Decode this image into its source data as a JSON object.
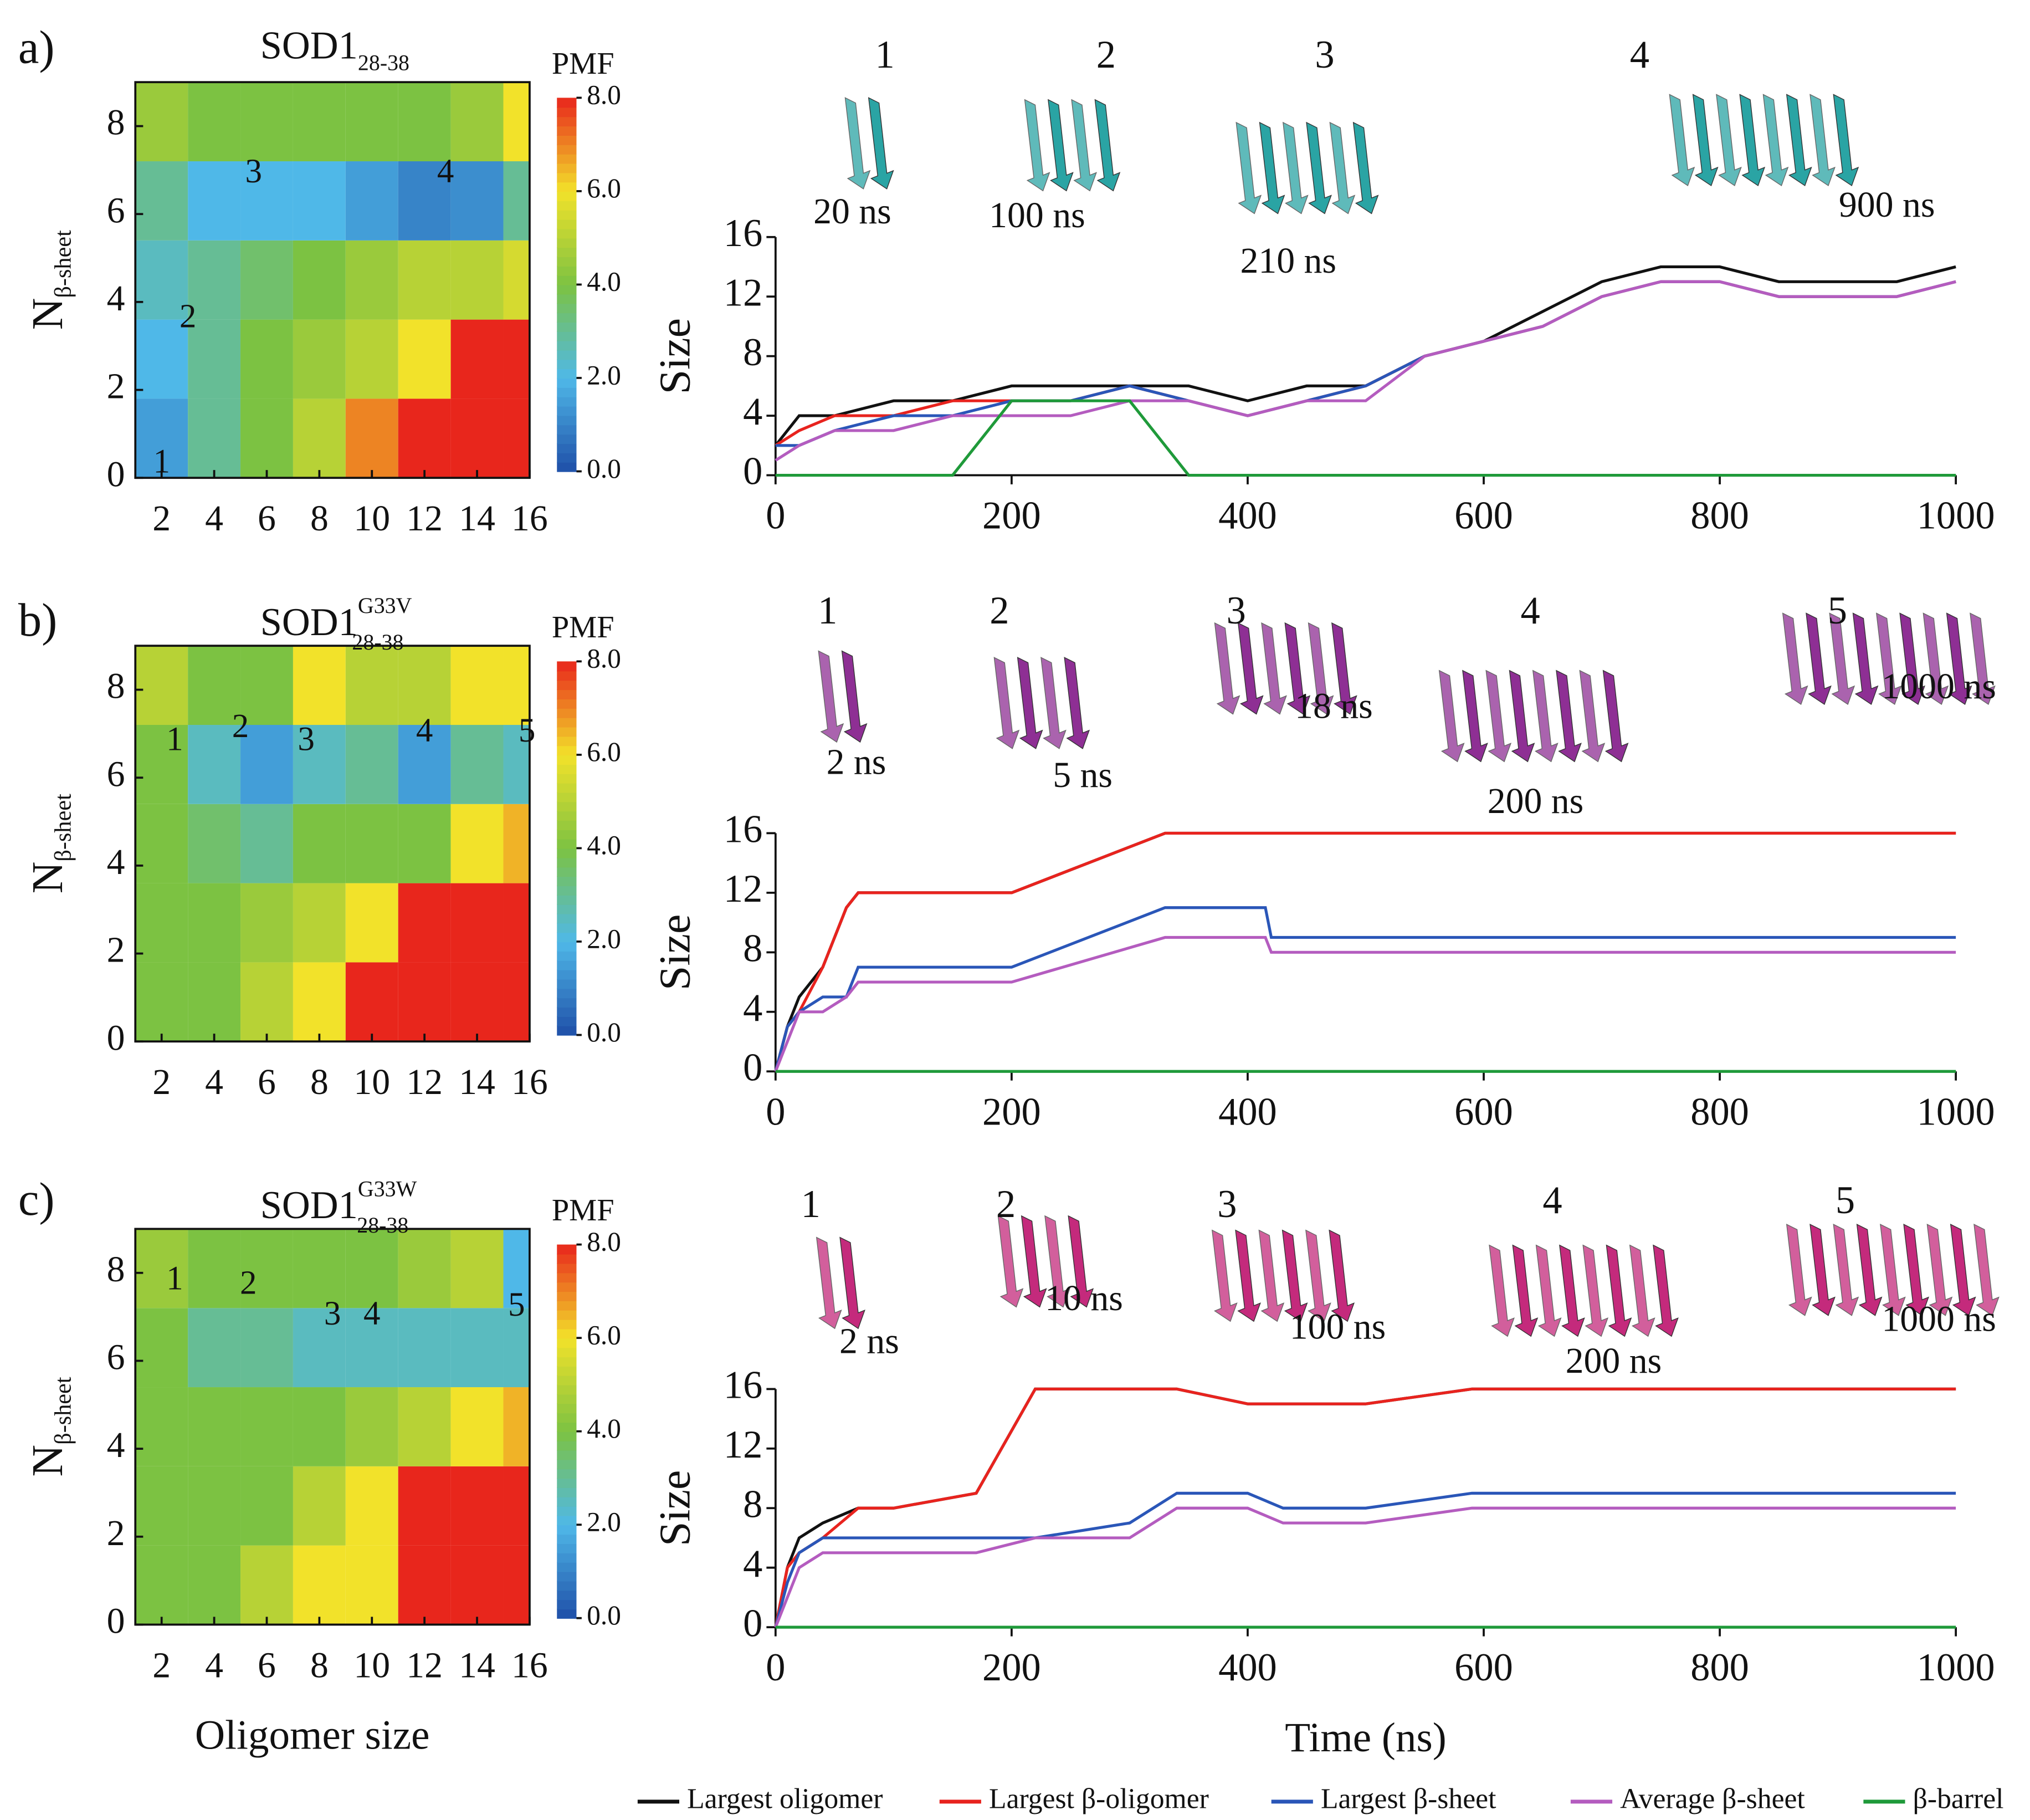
{
  "panel_labels": [
    "a)",
    "b)",
    "c)"
  ],
  "legend": [
    {
      "name": "Largest oligomer",
      "color": "#111111"
    },
    {
      "name": "Largest β-oligomer",
      "color": "#e8231e"
    },
    {
      "name": "Largest β-sheet",
      "color": "#2a56b8"
    },
    {
      "name": "Average β-sheet",
      "color": "#b45cbf"
    },
    {
      "name": "β-barrel",
      "color": "#1f9a3a"
    }
  ],
  "chart_data": [
    {
      "type": "heatmap",
      "title": "SOD1",
      "title_sub": "28-38",
      "ylabel": "N",
      "ylabel_sub": "β-sheet",
      "colorbar_title": "PMF",
      "x": [
        2,
        4,
        6,
        8,
        10,
        12,
        14,
        16
      ],
      "y": [
        0.9,
        2.7,
        4.5,
        6.3,
        8.1
      ],
      "z": [
        [
          1.5,
          3,
          4,
          5,
          7,
          8,
          8,
          8
        ],
        [
          2,
          3,
          4,
          4.5,
          5,
          6,
          8,
          8
        ],
        [
          2.5,
          3,
          3.5,
          4,
          4.5,
          5,
          5,
          5.5
        ],
        [
          3,
          2,
          2,
          2,
          1.5,
          1,
          1.2,
          3
        ],
        [
          4.5,
          4,
          4,
          4,
          4,
          4,
          4.5,
          6
        ]
      ],
      "xlim": [
        1,
        16
      ],
      "ylim": [
        0,
        9
      ],
      "xticks": [
        2,
        4,
        6,
        8,
        10,
        12,
        14,
        16
      ],
      "yticks": [
        0,
        2,
        4,
        6,
        8
      ],
      "zlim": [
        0,
        8
      ],
      "zticks": [
        {
          "value": 0,
          "label": "0.0"
        },
        {
          "value": 2,
          "label": "2.0"
        },
        {
          "value": 4,
          "label": "4.0"
        },
        {
          "value": 6,
          "label": "6.0"
        },
        {
          "value": 8,
          "label": "8.0"
        }
      ],
      "points": [
        {
          "label": "1",
          "x": 2,
          "y": 0.3
        },
        {
          "label": "2",
          "x": 3,
          "y": 3.6
        },
        {
          "label": "3",
          "x": 5.5,
          "y": 6.9
        },
        {
          "label": "4",
          "x": 12.8,
          "y": 6.9
        }
      ]
    },
    {
      "type": "line",
      "ylabel": "Size",
      "x": [
        0,
        20,
        50,
        100,
        150,
        200,
        250,
        300,
        350,
        400,
        450,
        500,
        550,
        600,
        650,
        700,
        750,
        800,
        850,
        900,
        950,
        1000
      ],
      "series": [
        {
          "values": [
            2,
            4,
            4,
            5,
            5,
            6,
            6,
            6,
            6,
            5,
            6,
            6,
            8,
            9,
            11,
            13,
            14,
            14,
            13,
            13,
            13,
            14
          ]
        },
        {
          "values": [
            2,
            3,
            4,
            4,
            5,
            5,
            5,
            6,
            5,
            4,
            5,
            6,
            8,
            9,
            10,
            12,
            13,
            13,
            12,
            12,
            12,
            13
          ]
        },
        {
          "values": [
            2,
            2,
            3,
            4,
            4,
            5,
            5,
            6,
            5,
            4,
            5,
            6,
            8,
            9,
            10,
            12,
            13,
            13,
            12,
            12,
            12,
            13
          ]
        },
        {
          "values": [
            1,
            2,
            3,
            3,
            4,
            4,
            4,
            5,
            5,
            4,
            5,
            5,
            8,
            9,
            10,
            12,
            13,
            13,
            12,
            12,
            12,
            13
          ]
        },
        {
          "values": [
            0,
            0,
            0,
            0,
            0,
            5,
            5,
            5,
            0,
            0,
            0,
            0,
            0,
            0,
            0,
            0,
            0,
            0,
            0,
            0,
            0,
            0
          ]
        }
      ],
      "xlim": [
        0,
        1000
      ],
      "ylim": [
        0,
        16
      ],
      "xticks": [
        0,
        200,
        400,
        600,
        800,
        1000
      ],
      "yticks": [
        0,
        4,
        8,
        12,
        16
      ],
      "snapshots": [
        {
          "label": "1",
          "time": "20 ns"
        },
        {
          "label": "2",
          "time": "100 ns"
        },
        {
          "label": "3",
          "time": "210 ns"
        },
        {
          "label": "4",
          "time": "900 ns"
        }
      ]
    },
    {
      "type": "heatmap",
      "title": "SOD1",
      "title_sup": "G33V",
      "title_sub": "28-38",
      "ylabel": "N",
      "ylabel_sub": "β-sheet",
      "colorbar_title": "PMF",
      "x": [
        2,
        4,
        6,
        8,
        10,
        12,
        14,
        16
      ],
      "y": [
        0.9,
        2.7,
        4.5,
        6.3,
        8.1
      ],
      "z": [
        [
          4,
          4,
          5,
          6,
          8,
          8,
          8,
          8
        ],
        [
          4,
          4,
          4.5,
          5,
          6,
          8,
          8,
          8
        ],
        [
          4,
          3.5,
          3,
          4,
          4,
          4,
          6,
          6.5
        ],
        [
          4,
          2.5,
          1.5,
          2.5,
          3,
          1.5,
          3,
          2.5
        ],
        [
          5,
          4,
          4,
          6,
          5,
          5,
          6,
          6
        ]
      ],
      "xlim": [
        1,
        16
      ],
      "ylim": [
        0,
        9
      ],
      "xticks": [
        2,
        4,
        6,
        8,
        10,
        12,
        14,
        16
      ],
      "yticks": [
        0,
        2,
        4,
        6,
        8
      ],
      "zlim": [
        0,
        8
      ],
      "zticks": [
        {
          "value": 0,
          "label": "0.0"
        },
        {
          "value": 2,
          "label": "2.0"
        },
        {
          "value": 4,
          "label": "4.0"
        },
        {
          "value": 6,
          "label": "6.0"
        },
        {
          "value": 8,
          "label": "8.0"
        }
      ],
      "points": [
        {
          "label": "1",
          "x": 2.5,
          "y": 6.8
        },
        {
          "label": "2",
          "x": 5,
          "y": 7.1
        },
        {
          "label": "3",
          "x": 7.5,
          "y": 6.8
        },
        {
          "label": "4",
          "x": 12,
          "y": 7
        },
        {
          "label": "5",
          "x": 15.9,
          "y": 7
        }
      ]
    },
    {
      "type": "line",
      "ylabel": "Size",
      "x": [
        0,
        10,
        20,
        40,
        60,
        70,
        200,
        330,
        380,
        415,
        420,
        600,
        1000
      ],
      "series": [
        {
          "values": [
            0,
            3,
            5,
            7,
            11,
            12,
            12,
            16,
            16,
            16,
            16,
            16,
            16
          ]
        },
        {
          "values": [
            0,
            3,
            4,
            7,
            11,
            12,
            12,
            16,
            16,
            16,
            16,
            16,
            16
          ]
        },
        {
          "values": [
            0,
            3,
            4,
            5,
            5,
            7,
            7,
            11,
            11,
            11,
            9,
            9,
            9
          ]
        },
        {
          "values": [
            0,
            2,
            4,
            4,
            5,
            6,
            6,
            9,
            9,
            9,
            8,
            8,
            8
          ]
        },
        {
          "values": [
            0,
            0,
            0,
            0,
            0,
            0,
            0,
            0,
            0,
            0,
            0,
            0,
            0
          ]
        }
      ],
      "xlim": [
        0,
        1000
      ],
      "ylim": [
        0,
        16
      ],
      "xticks": [
        0,
        200,
        400,
        600,
        800,
        1000
      ],
      "yticks": [
        0,
        4,
        8,
        12,
        16
      ],
      "snapshots": [
        {
          "label": "1",
          "time": "2 ns"
        },
        {
          "label": "2",
          "time": "5 ns"
        },
        {
          "label": "3",
          "time": "18 ns"
        },
        {
          "label": "4",
          "time": "200 ns"
        },
        {
          "label": "5",
          "time": "1000 ns"
        }
      ]
    },
    {
      "type": "heatmap",
      "title": "SOD1",
      "title_sup": "G33W",
      "title_sub": "28-38",
      "ylabel": "N",
      "ylabel_sub": "β-sheet",
      "colorbar_title": "PMF",
      "xlabel": "Oligomer size",
      "x": [
        2,
        4,
        6,
        8,
        10,
        12,
        14,
        16
      ],
      "y": [
        0.9,
        2.7,
        4.5,
        6.3,
        8.1
      ],
      "z": [
        [
          4,
          4,
          5,
          6,
          6,
          8,
          8,
          8
        ],
        [
          4,
          4,
          4,
          5,
          6,
          8,
          8,
          8
        ],
        [
          4,
          4,
          4,
          4,
          4.5,
          5,
          6,
          6.5
        ],
        [
          4,
          3,
          3,
          2.5,
          2.5,
          2.5,
          2.5,
          2.5
        ],
        [
          4.5,
          4,
          4,
          4,
          4,
          4.5,
          5,
          2
        ]
      ],
      "xlim": [
        1,
        16
      ],
      "ylim": [
        0,
        9
      ],
      "xticks": [
        2,
        4,
        6,
        8,
        10,
        12,
        14,
        16
      ],
      "yticks": [
        0,
        2,
        4,
        6,
        8
      ],
      "zlim": [
        0,
        8
      ],
      "zticks": [
        {
          "value": 0,
          "label": "0.0"
        },
        {
          "value": 2,
          "label": "2.0"
        },
        {
          "value": 4,
          "label": "4.0"
        },
        {
          "value": 6,
          "label": "6.0"
        },
        {
          "value": 8,
          "label": "8.0"
        }
      ],
      "points": [
        {
          "label": "1",
          "x": 2.5,
          "y": 7.8
        },
        {
          "label": "2",
          "x": 5.3,
          "y": 7.7
        },
        {
          "label": "3",
          "x": 8.5,
          "y": 7
        },
        {
          "label": "4",
          "x": 10,
          "y": 7
        },
        {
          "label": "5",
          "x": 15.5,
          "y": 7.2
        }
      ]
    },
    {
      "type": "line",
      "ylabel": "Size",
      "xlabel": "Time (ns)",
      "x": [
        0,
        10,
        20,
        40,
        70,
        100,
        170,
        220,
        300,
        340,
        400,
        430,
        500,
        590,
        1000
      ],
      "series": [
        {
          "values": [
            0,
            4,
            6,
            7,
            8,
            8,
            9,
            16,
            16,
            16,
            15,
            15,
            15,
            16,
            16
          ]
        },
        {
          "values": [
            0,
            4,
            5,
            6,
            8,
            8,
            9,
            16,
            16,
            16,
            15,
            15,
            15,
            16,
            16
          ]
        },
        {
          "values": [
            0,
            3,
            5,
            6,
            6,
            6,
            6,
            6,
            7,
            9,
            9,
            8,
            8,
            9,
            9
          ]
        },
        {
          "values": [
            0,
            2,
            4,
            5,
            5,
            5,
            5,
            6,
            6,
            8,
            8,
            7,
            7,
            8,
            8
          ]
        },
        {
          "values": [
            0,
            0,
            0,
            0,
            0,
            0,
            0,
            0,
            0,
            0,
            0,
            0,
            0,
            0,
            0
          ]
        }
      ],
      "xlim": [
        0,
        1000
      ],
      "ylim": [
        0,
        16
      ],
      "xticks": [
        0,
        200,
        400,
        600,
        800,
        1000
      ],
      "yticks": [
        0,
        4,
        8,
        12,
        16
      ],
      "snapshots": [
        {
          "label": "1",
          "time": "2 ns"
        },
        {
          "label": "2",
          "time": "10 ns"
        },
        {
          "label": "3",
          "time": "100 ns"
        },
        {
          "label": "4",
          "time": "200 ns"
        },
        {
          "label": "5",
          "time": "1000 ns"
        }
      ]
    }
  ]
}
